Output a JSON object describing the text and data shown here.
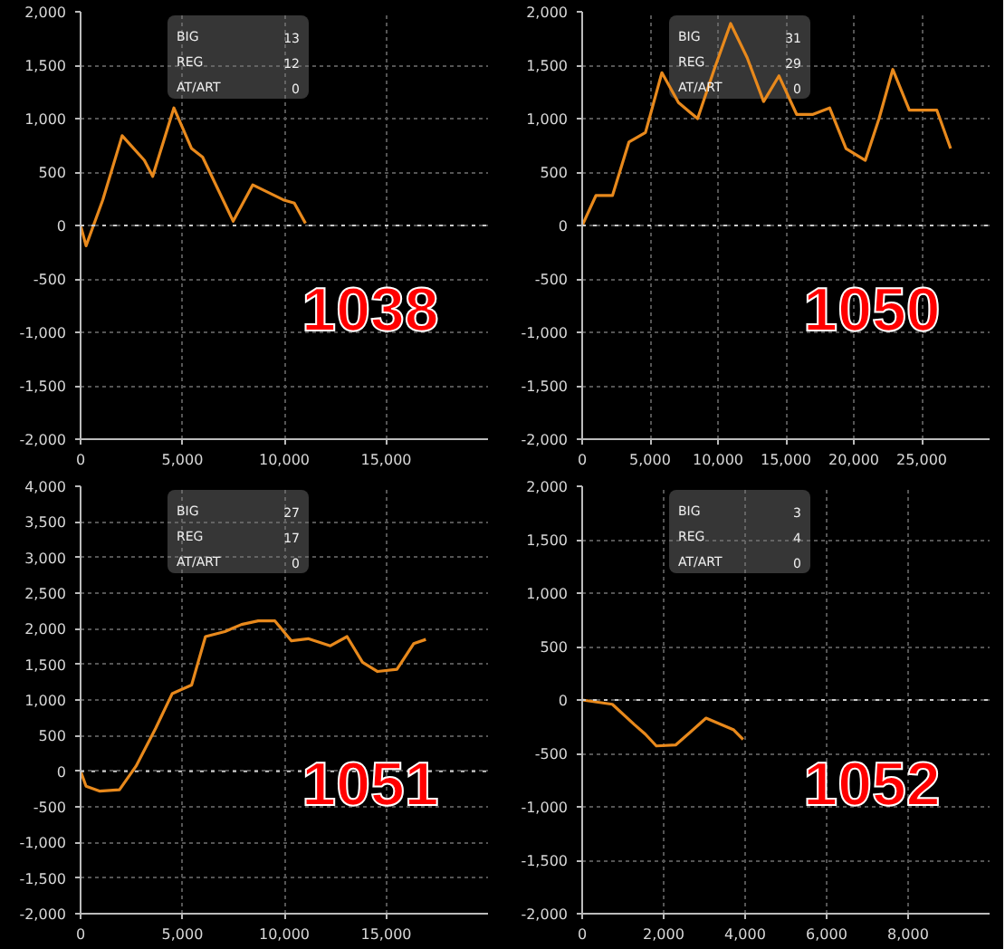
{
  "chart_data": [
    {
      "type": "line",
      "title": "1038",
      "annotations": [
        "BIG",
        "13",
        "REG",
        "12",
        "AT/ART",
        "0"
      ],
      "series": [
        {
          "color": "#e8891c",
          "x": [
            0,
            270,
            1090,
            2040,
            3130,
            3540,
            4580,
            5450,
            5990,
            7490,
            8450,
            9950,
            10490,
            11040
          ],
          "values": [
            0,
            -190,
            240,
            840,
            610,
            460,
            1100,
            720,
            640,
            40,
            380,
            240,
            210,
            20
          ]
        }
      ],
      "xlim": [
        0,
        20000
      ],
      "xticks": [
        0,
        {
          "value": 5000,
          "label": "5,000"
        },
        {
          "value": 10000,
          "label": "10,000"
        },
        {
          "value": 15000,
          "label": "15,000"
        }
      ],
      "ylim": [
        -2000,
        2000
      ],
      "yticks": [
        {
          "value": -2000,
          "label": "-2,000"
        },
        {
          "value": -1500,
          "label": "-1,500"
        },
        {
          "value": -1000,
          "label": "-1,000"
        },
        -500,
        0,
        500,
        {
          "value": 1000,
          "label": "1,000"
        },
        {
          "value": 1500,
          "label": "1,500"
        },
        {
          "value": 2000,
          "label": "2,000"
        }
      ],
      "grid": true,
      "ref_lines": [
        {
          "axis": "y",
          "value": 0,
          "color": "#cccccc",
          "line_style": "dotted"
        }
      ]
    },
    {
      "type": "line",
      "title": "1050",
      "annotations": [
        "BIG",
        "31",
        "REG",
        "29",
        "AT/ART",
        "0"
      ],
      "series": [
        {
          "color": "#e8891c",
          "x": [
            0,
            1010,
            2230,
            3440,
            4660,
            5870,
            7090,
            8500,
            9720,
            10930,
            12150,
            13360,
            14490,
            15790,
            17000,
            18220,
            19430,
            20850,
            21860,
            22870,
            24090,
            26110,
            27130
          ],
          "values": [
            0,
            280,
            280,
            780,
            870,
            1430,
            1150,
            1000,
            1460,
            1890,
            1570,
            1160,
            1400,
            1040,
            1040,
            1100,
            720,
            610,
            1000,
            1460,
            1080,
            1080,
            720
          ]
        }
      ],
      "xlim": [
        0,
        30000
      ],
      "xticks": [
        0,
        {
          "value": 5000,
          "label": "5,000"
        },
        {
          "value": 10000,
          "label": "10,000"
        },
        {
          "value": 15000,
          "label": "15,000"
        },
        {
          "value": 20000,
          "label": "20,000"
        },
        {
          "value": 25000,
          "label": "25,000"
        }
      ],
      "ylim": [
        -2000,
        2000
      ],
      "yticks": [
        {
          "value": -2000,
          "label": "-2,000"
        },
        {
          "value": -1500,
          "label": "-1,500"
        },
        {
          "value": -1000,
          "label": "-1,000"
        },
        -500,
        0,
        500,
        {
          "value": 1000,
          "label": "1,000"
        },
        {
          "value": 1500,
          "label": "1,500"
        },
        {
          "value": 2000,
          "label": "2,000"
        }
      ],
      "grid": true,
      "ref_lines": [
        {
          "axis": "y",
          "value": 0,
          "color": "#cccccc",
          "line_style": "dotted"
        }
      ]
    },
    {
      "type": "line",
      "title": "1051",
      "annotations": [
        "BIG",
        "27",
        "REG",
        "17",
        "AT/ART",
        "0"
      ],
      "series": [
        {
          "color": "#e8891c",
          "x": [
            0,
            270,
            950,
            1910,
            2720,
            3680,
            4500,
            5450,
            6130,
            7080,
            7900,
            8720,
            9540,
            10350,
            11170,
            12260,
            13080,
            13840,
            14580,
            15530,
            16350,
            16950
          ],
          "values": [
            0,
            -210,
            -280,
            -260,
            70,
            600,
            1090,
            1210,
            1890,
            1960,
            2060,
            2110,
            2110,
            1830,
            1860,
            1760,
            1890,
            1530,
            1400,
            1430,
            1790,
            1850
          ]
        }
      ],
      "xlim": [
        0,
        20000
      ],
      "xticks": [
        0,
        {
          "value": 5000,
          "label": "5,000"
        },
        {
          "value": 10000,
          "label": "10,000"
        },
        {
          "value": 15000,
          "label": "15,000"
        }
      ],
      "ylim": [
        -2000,
        4000
      ],
      "yticks": [
        {
          "value": -2000,
          "label": "-2,000"
        },
        {
          "value": -1500,
          "label": "-1,500"
        },
        {
          "value": -1000,
          "label": "-1,000"
        },
        -500,
        0,
        500,
        {
          "value": 1000,
          "label": "1,000"
        },
        {
          "value": 1500,
          "label": "1,500"
        },
        {
          "value": 2000,
          "label": "2,000"
        },
        {
          "value": 2500,
          "label": "2,500"
        },
        {
          "value": 3000,
          "label": "3,000"
        },
        {
          "value": 3500,
          "label": "3,500"
        },
        {
          "value": 4000,
          "label": "4,000"
        }
      ],
      "grid": true,
      "ref_lines": [
        {
          "axis": "y",
          "value": 0,
          "color": "#cccccc",
          "line_style": "dotted"
        }
      ]
    },
    {
      "type": "line",
      "title": "1052",
      "annotations": [
        "BIG",
        "3",
        "REG",
        "4",
        "AT/ART",
        "0"
      ],
      "series": [
        {
          "color": "#e8891c",
          "x": [
            0,
            740,
            1280,
            1550,
            1820,
            2300,
            3040,
            3720,
            3950
          ],
          "values": [
            0,
            -40,
            -230,
            -320,
            -430,
            -420,
            -170,
            -280,
            -370
          ]
        }
      ],
      "xlim": [
        0,
        10000
      ],
      "xticks": [
        0,
        {
          "value": 2000,
          "label": "2,000"
        },
        {
          "value": 4000,
          "label": "4,000"
        },
        {
          "value": 6000,
          "label": "6,000"
        },
        {
          "value": 8000,
          "label": "8,000"
        }
      ],
      "ylim": [
        -2000,
        2000
      ],
      "yticks": [
        {
          "value": -2000,
          "label": "-2,000"
        },
        {
          "value": -1500,
          "label": "-1,500"
        },
        {
          "value": -1000,
          "label": "-1,000"
        },
        -500,
        0,
        500,
        {
          "value": 1000,
          "label": "1,000"
        },
        {
          "value": 1500,
          "label": "1,500"
        },
        {
          "value": 2000,
          "label": "2,000"
        }
      ],
      "grid": true,
      "ref_lines": [
        {
          "axis": "y",
          "value": 0,
          "color": "#cccccc",
          "line_style": "dotted"
        }
      ]
    }
  ]
}
